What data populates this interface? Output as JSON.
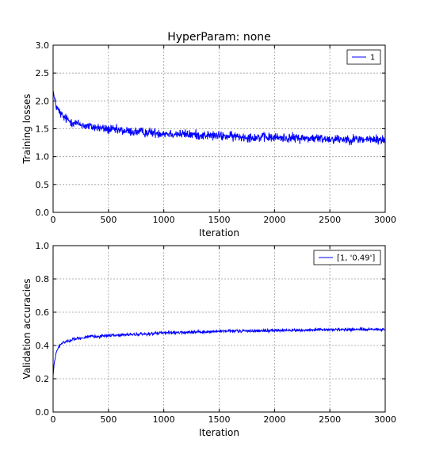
{
  "chart_data": [
    {
      "type": "line",
      "title": "HyperParam: none",
      "xlabel": "Iteration",
      "ylabel": "Training losses",
      "xlim": [
        0,
        3000
      ],
      "ylim": [
        0.0,
        3.0
      ],
      "xticks": [
        "0",
        "500",
        "1000",
        "1500",
        "2000",
        "2500",
        "3000"
      ],
      "yticks": [
        "0.0",
        "0.5",
        "1.0",
        "1.5",
        "2.0",
        "2.5",
        "3.0"
      ],
      "grid": true,
      "legend_position": "top-right",
      "series": [
        {
          "name": "1",
          "color": "#0000ff",
          "x": [
            0,
            10,
            25,
            50,
            75,
            100,
            150,
            200,
            300,
            400,
            500,
            700,
            1000,
            1300,
            1500,
            1800,
            2000,
            2300,
            2500,
            2800,
            3000
          ],
          "y": [
            2.2,
            2.05,
            1.92,
            1.82,
            1.75,
            1.7,
            1.64,
            1.6,
            1.55,
            1.52,
            1.49,
            1.45,
            1.42,
            1.39,
            1.37,
            1.35,
            1.34,
            1.33,
            1.32,
            1.31,
            1.3
          ]
        }
      ]
    },
    {
      "type": "line",
      "title": "",
      "xlabel": "Iteration",
      "ylabel": "Validation accuracies",
      "xlim": [
        0,
        3000
      ],
      "ylim": [
        0.0,
        1.0
      ],
      "xticks": [
        "0",
        "500",
        "1000",
        "1500",
        "2000",
        "2500",
        "3000"
      ],
      "yticks": [
        "0.0",
        "0.2",
        "0.4",
        "0.6",
        "0.8",
        "1.0"
      ],
      "grid": true,
      "legend_position": "top-right",
      "series": [
        {
          "name": "[1, '0.49']",
          "color": "#0000ff",
          "x": [
            0,
            10,
            25,
            50,
            75,
            100,
            150,
            200,
            300,
            400,
            500,
            700,
            1000,
            1300,
            1500,
            1800,
            2000,
            2300,
            2500,
            2800,
            3000
          ],
          "y": [
            0.22,
            0.29,
            0.35,
            0.39,
            0.41,
            0.42,
            0.43,
            0.44,
            0.45,
            0.455,
            0.46,
            0.465,
            0.475,
            0.48,
            0.485,
            0.488,
            0.49,
            0.492,
            0.495,
            0.497,
            0.495
          ]
        }
      ]
    }
  ]
}
